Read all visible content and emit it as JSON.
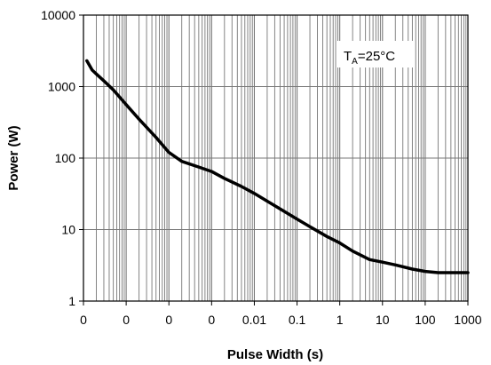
{
  "chart_data": {
    "type": "line",
    "title": "",
    "xlabel": "Pulse Width (s)",
    "ylabel": "Power (W)",
    "x_scale": "log",
    "y_scale": "log",
    "xlim": [
      1e-06,
      1000
    ],
    "ylim": [
      1,
      10000
    ],
    "grid": true,
    "x_ticks": [
      1e-06,
      1e-05,
      0.0001,
      0.001,
      0.01,
      0.1,
      1,
      10,
      100,
      1000
    ],
    "x_tick_labels": [
      "0",
      "0",
      "0",
      "0",
      "0.01",
      "0.1",
      "1",
      "10",
      "100",
      "1000"
    ],
    "y_ticks": [
      1,
      10,
      100,
      1000,
      10000
    ],
    "y_tick_labels": [
      "1",
      "10",
      "100",
      "1000",
      "10000"
    ],
    "annotation": {
      "main": "T",
      "sub": "A",
      "rest": "=25°C"
    },
    "series": [
      {
        "color": "#000000",
        "x": [
          1.2e-06,
          1.6e-06,
          2e-06,
          3e-06,
          5e-06,
          1e-05,
          2e-05,
          5e-05,
          0.0001,
          0.0002,
          0.0005,
          0.001,
          0.002,
          0.005,
          0.01,
          0.02,
          0.05,
          0.1,
          0.2,
          0.5,
          1,
          2,
          5,
          10,
          20,
          50,
          100,
          200,
          500,
          1000
        ],
        "y": [
          2300,
          1700,
          1500,
          1200,
          900,
          560,
          350,
          195,
          120,
          90,
          75,
          65,
          52,
          40,
          32,
          25,
          18,
          14,
          11,
          8,
          6.5,
          5,
          3.8,
          3.5,
          3.2,
          2.8,
          2.6,
          2.5,
          2.5,
          2.5
        ]
      }
    ]
  }
}
